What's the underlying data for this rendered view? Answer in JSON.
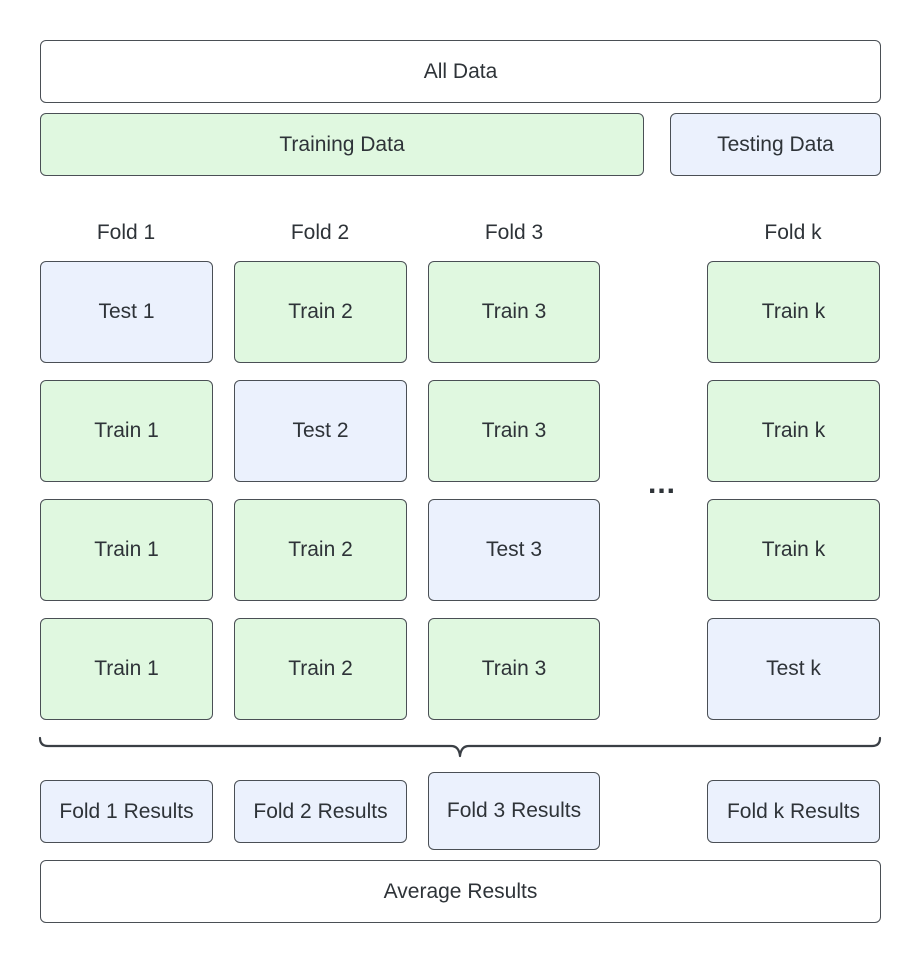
{
  "all_data": "All Data",
  "training_data": "Training Data",
  "testing_data": "Testing Data",
  "folds": [
    {
      "title": "Fold 1",
      "cells": [
        "Test 1",
        "Train 1",
        "Train 1",
        "Train 1"
      ],
      "result": "Fold 1 Results"
    },
    {
      "title": "Fold 2",
      "cells": [
        "Train 2",
        "Test 2",
        "Train 2",
        "Train 2"
      ],
      "result": "Fold 2 Results"
    },
    {
      "title": "Fold 3",
      "cells": [
        "Train 3",
        "Train 3",
        "Test 3",
        "Train 3"
      ],
      "result": "Fold 3 Results"
    },
    {
      "title": "Fold k",
      "cells": [
        "Train k",
        "Train k",
        "Train k",
        "Test k"
      ],
      "result": "Fold k Results"
    }
  ],
  "ellipsis": "...",
  "average_results": "Average Results",
  "colors": {
    "train": "#e0f8e0",
    "test": "#ebf1fd",
    "border": "#4a4f55"
  }
}
